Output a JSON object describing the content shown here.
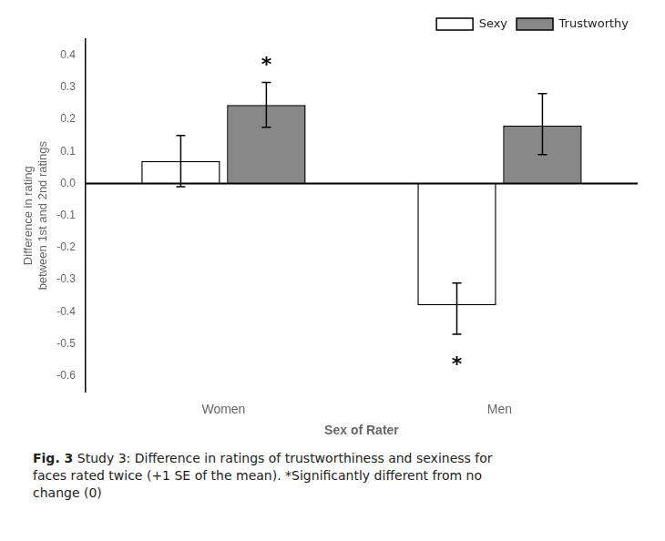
{
  "chart_data": {
    "type": "bar",
    "categories": [
      "Women",
      "Men"
    ],
    "series": [
      {
        "name": "Sexy",
        "color": "#FFFFFF",
        "values": [
          0.07,
          -0.38
        ],
        "error_up": [
          0.08,
          0.07
        ],
        "error_down": [
          0.08,
          0.09
        ]
      },
      {
        "name": "Trustworthy",
        "color": "#888888",
        "values": [
          0.245,
          0.18
        ],
        "error_up": [
          0.07,
          0.1
        ],
        "error_down": [
          0.07,
          0.09
        ]
      }
    ],
    "ylabel": [
      "Difference in rating",
      "between 1st and 2nd ratings"
    ],
    "xlabel": "Sex of Rater",
    "ylim": [
      -0.65,
      0.45
    ],
    "yticks": [
      -0.6,
      -0.5,
      -0.4,
      -0.3,
      -0.2,
      -0.1,
      {
        "value": 0.0,
        "label": "0.0"
      },
      0.1,
      0.2,
      0.3,
      0.4
    ],
    "annotations": [
      {
        "text": "*",
        "series": "Trustworthy",
        "category": "Women",
        "y": 0.335,
        "anchor": "bottom"
      },
      {
        "text": "*",
        "series": "Sexy",
        "category": "Men",
        "y": -0.535,
        "anchor": "top"
      }
    ],
    "grid": false,
    "legend": "upper right",
    "caption_bold": "Fig. 3",
    "caption": "Study 3: Difference in ratings of trustworthiness and sexiness for\nfaces rated twice (+1 SE of the mean). *Significantly different from no\nchange (0)"
  }
}
